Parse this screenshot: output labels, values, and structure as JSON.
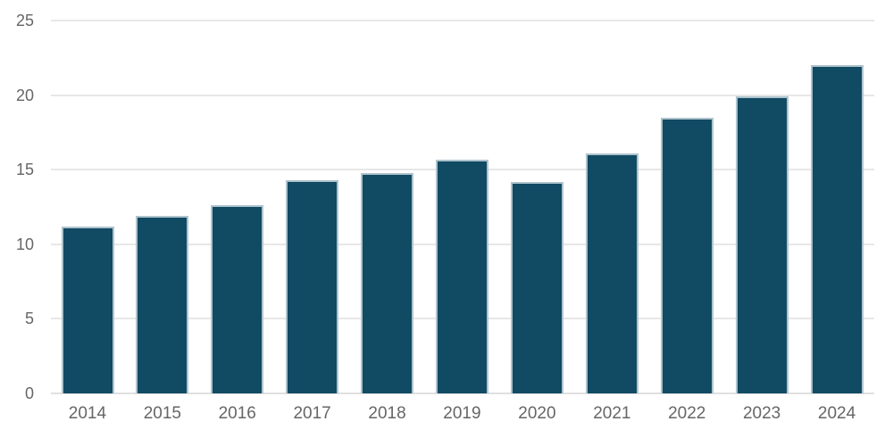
{
  "chart_data": {
    "type": "bar",
    "title": "",
    "xlabel": "",
    "ylabel": "",
    "categories": [
      "2014",
      "2015",
      "2016",
      "2017",
      "2018",
      "2019",
      "2020",
      "2021",
      "2022",
      "2023",
      "2024"
    ],
    "values": [
      11.2,
      11.9,
      12.6,
      14.3,
      14.8,
      15.7,
      14.2,
      16.1,
      18.5,
      19.9,
      22.0
    ],
    "ylim": [
      0,
      25
    ],
    "yticks": [
      0,
      5,
      10,
      15,
      20,
      25
    ],
    "grid": true,
    "legend": false,
    "colors": {
      "bar_fill": "#114a63",
      "bar_border": "#aec3cd",
      "gridline": "#e7e7e7",
      "axis_line": "#e0e0e0",
      "tick_label": "#666666",
      "background": "#ffffff"
    }
  }
}
